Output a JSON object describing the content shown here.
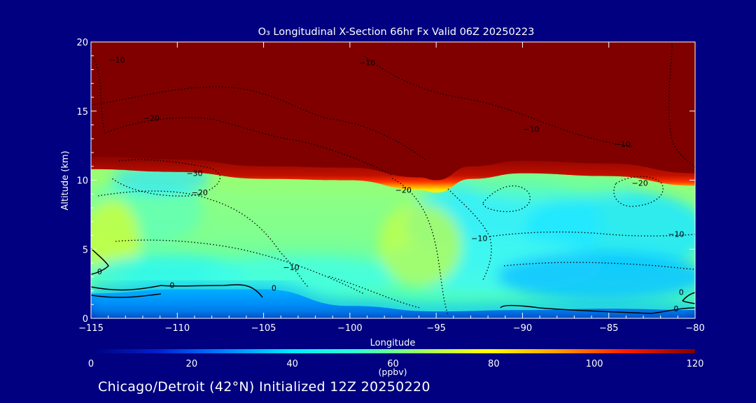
{
  "chart_data": {
    "type": "heatmap",
    "title": "O₃ Longitudinal X-Section 66hr  Fx Valid 06Z 20250223",
    "xlabel": "Longitude",
    "ylabel": "Altitude (km)",
    "xlim": [
      -115,
      -80
    ],
    "ylim": [
      0,
      20
    ],
    "x_ticks": [
      -115,
      -110,
      -105,
      -100,
      -95,
      -90,
      -85,
      -80
    ],
    "x_tick_labels": [
      "−115",
      "−110",
      "−105",
      "−100",
      "−95",
      "−90",
      "−85",
      "−80"
    ],
    "y_ticks": [
      0,
      5,
      10,
      15,
      20
    ],
    "y_tick_labels": [
      "0",
      "5",
      "10",
      "15",
      "20"
    ],
    "colorbar": {
      "label": "(ppbv)",
      "min": 0,
      "max": 120,
      "ticks": [
        0,
        20,
        40,
        60,
        80,
        100,
        120
      ],
      "tick_labels": [
        "0",
        "20",
        "40",
        "60",
        "80",
        "100",
        "120"
      ],
      "colors": [
        "#00007a",
        "#0020d0",
        "#0080ff",
        "#00e8ff",
        "#30ffd0",
        "#a0ff60",
        "#ffff00",
        "#ffa000",
        "#ff2000",
        "#800000"
      ]
    },
    "field_description": "ozone mixing ratio; >110 ppbv above ~11 km (tropopause dips to ~9.5 km near -95), 40-65 ppbv in mid-troposphere, <25 ppbv near surface",
    "tropopause_km": [
      {
        "lon": -115,
        "alt": 11.5
      },
      {
        "lon": -110,
        "alt": 11.3
      },
      {
        "lon": -105,
        "alt": 10.8
      },
      {
        "lon": -100,
        "alt": 10.7
      },
      {
        "lon": -96,
        "alt": 10.0
      },
      {
        "lon": -95,
        "alt": 9.8
      },
      {
        "lon": -93,
        "alt": 10.8
      },
      {
        "lon": -90,
        "alt": 11.2
      },
      {
        "lon": -85,
        "alt": 11.0
      },
      {
        "lon": -80,
        "alt": 10.3
      }
    ],
    "boundary_layer_top_km": [
      {
        "lon": -115,
        "alt": 1.8
      },
      {
        "lon": -110,
        "alt": 2.1
      },
      {
        "lon": -105,
        "alt": 2.1
      },
      {
        "lon": -100,
        "alt": 0.9
      },
      {
        "lon": -95,
        "alt": 0.5
      },
      {
        "lon": -90,
        "alt": 0.6
      },
      {
        "lon": -85,
        "alt": 0.7
      },
      {
        "lon": -80,
        "alt": 0.6
      }
    ],
    "contour_labels": [
      {
        "text": "−10",
        "lon": -113.5,
        "alt": 18.5
      },
      {
        "text": "−10",
        "lon": -99,
        "alt": 18.3
      },
      {
        "text": "−20",
        "lon": -111.5,
        "alt": 14.3
      },
      {
        "text": "−10",
        "lon": -89.5,
        "alt": 13.5
      },
      {
        "text": "−10",
        "lon": -84.2,
        "alt": 12.4
      },
      {
        "text": "−30",
        "lon": -109,
        "alt": 10.3
      },
      {
        "text": "−20",
        "lon": -108.7,
        "alt": 8.9
      },
      {
        "text": "−20",
        "lon": -96.9,
        "alt": 9.1
      },
      {
        "text": "−20",
        "lon": -83.2,
        "alt": 9.6
      },
      {
        "text": "−10",
        "lon": -92.5,
        "alt": 5.6
      },
      {
        "text": "−10",
        "lon": -81.1,
        "alt": 5.9
      },
      {
        "text": "−10",
        "lon": -103.4,
        "alt": 3.5
      },
      {
        "text": "0",
        "lon": -114.5,
        "alt": 3.2
      },
      {
        "text": "0",
        "lon": -110.3,
        "alt": 2.2
      },
      {
        "text": "0",
        "lon": -104.4,
        "alt": 2.0
      },
      {
        "text": "0",
        "lon": -80.8,
        "alt": 1.7
      },
      {
        "text": "0",
        "lon": -81.1,
        "alt": 0.5
      }
    ],
    "grid": false
  },
  "subtitle": "Chicago/Detroit (42°N) Initialized 12Z 20250220"
}
